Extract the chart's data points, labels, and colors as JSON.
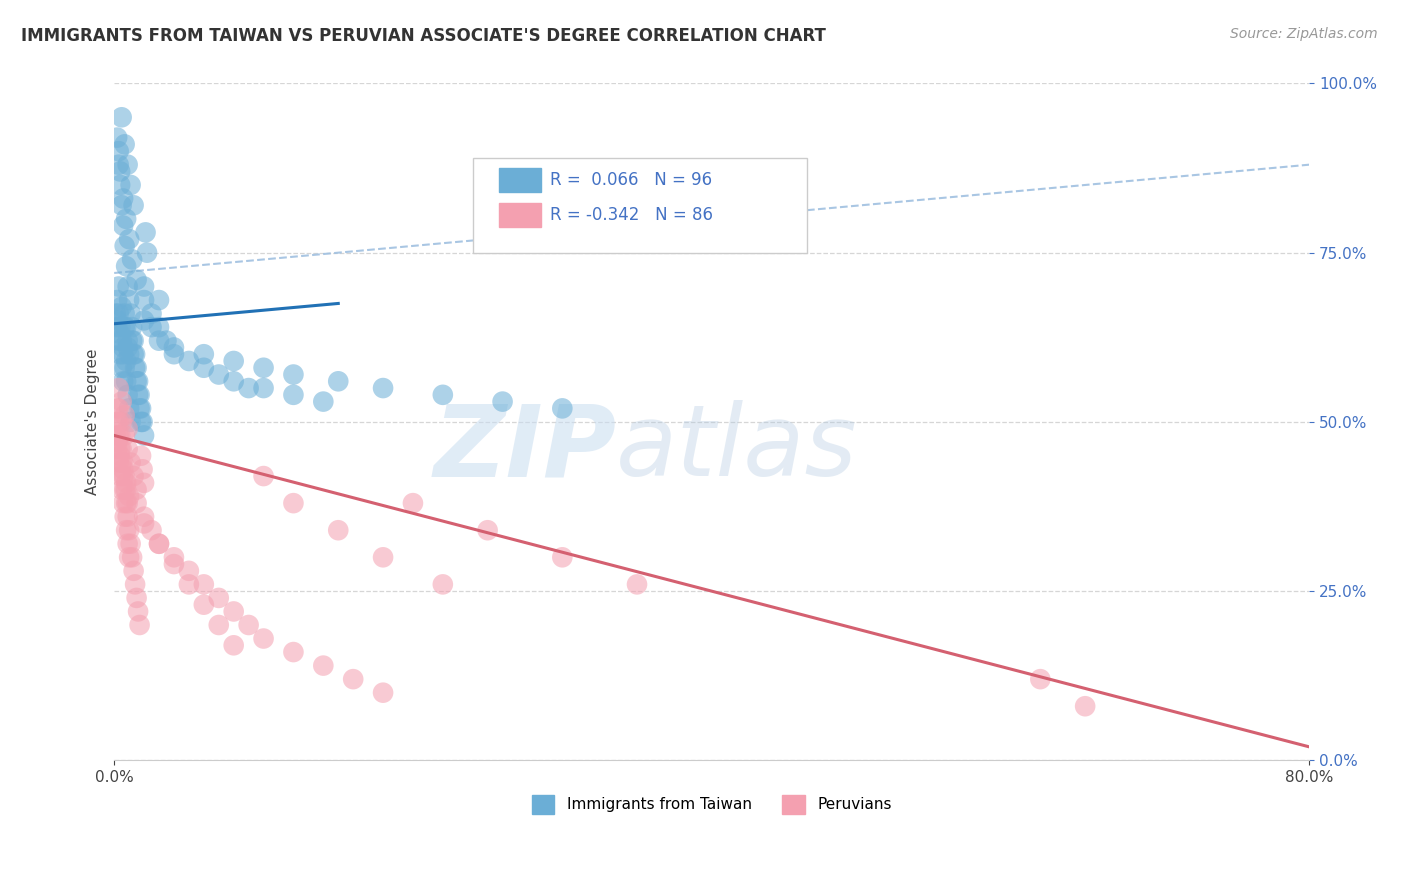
{
  "title": "IMMIGRANTS FROM TAIWAN VS PERUVIAN ASSOCIATE'S DEGREE CORRELATION CHART",
  "source": "Source: ZipAtlas.com",
  "ylabel": "Associate's Degree",
  "legend_label1": "Immigrants from Taiwan",
  "legend_label2": "Peruvians",
  "R1": 0.066,
  "N1": 96,
  "R2": -0.342,
  "N2": 86,
  "xlim": [
    0.0,
    0.8
  ],
  "ylim": [
    0.0,
    1.0
  ],
  "x_ticks": [
    0.0,
    0.8
  ],
  "x_tick_labels": [
    "0.0%",
    "80.0%"
  ],
  "y_ticks": [
    0.0,
    0.25,
    0.5,
    0.75,
    1.0
  ],
  "y_tick_labels": [
    "0.0%",
    "25.0%",
    "50.0%",
    "75.0%",
    "100.0%"
  ],
  "color_taiwan": "#6baed6",
  "color_peru": "#f4a0b0",
  "trend_color_taiwan": "#2171b5",
  "trend_color_peru": "#d46070",
  "dashed_line_color": "#a0c0e0",
  "bg_color": "#ffffff",
  "grid_color": "#cccccc",
  "watermark_zip": "ZIP",
  "watermark_atlas": "atlas",
  "title_fontsize": 12,
  "axis_label_fontsize": 11,
  "tick_fontsize": 11,
  "source_fontsize": 10,
  "taiwan_dots": {
    "x": [
      0.002,
      0.003,
      0.004,
      0.005,
      0.006,
      0.007,
      0.008,
      0.009,
      0.01,
      0.011,
      0.012,
      0.013,
      0.014,
      0.015,
      0.016,
      0.017,
      0.018,
      0.019,
      0.02,
      0.021,
      0.022,
      0.003,
      0.004,
      0.006,
      0.008,
      0.01,
      0.012,
      0.005,
      0.007,
      0.009,
      0.011,
      0.013,
      0.003,
      0.005,
      0.007,
      0.009,
      0.002,
      0.004,
      0.006,
      0.008,
      0.015,
      0.02,
      0.025,
      0.03,
      0.035,
      0.04,
      0.05,
      0.06,
      0.07,
      0.08,
      0.09,
      0.1,
      0.12,
      0.14,
      0.001,
      0.002,
      0.003,
      0.004,
      0.005,
      0.006,
      0.007,
      0.008,
      0.009,
      0.01,
      0.002,
      0.003,
      0.004,
      0.005,
      0.006,
      0.007,
      0.008,
      0.009,
      0.01,
      0.011,
      0.012,
      0.013,
      0.014,
      0.015,
      0.016,
      0.017,
      0.018,
      0.02,
      0.025,
      0.03,
      0.04,
      0.06,
      0.08,
      0.1,
      0.12,
      0.15,
      0.18,
      0.22,
      0.26,
      0.3,
      0.02,
      0.03
    ],
    "y": [
      0.92,
      0.88,
      0.85,
      0.82,
      0.79,
      0.76,
      0.73,
      0.7,
      0.68,
      0.66,
      0.64,
      0.62,
      0.6,
      0.58,
      0.56,
      0.54,
      0.52,
      0.5,
      0.48,
      0.78,
      0.75,
      0.9,
      0.87,
      0.83,
      0.8,
      0.77,
      0.74,
      0.95,
      0.91,
      0.88,
      0.85,
      0.82,
      0.7,
      0.67,
      0.64,
      0.61,
      0.65,
      0.63,
      0.61,
      0.59,
      0.71,
      0.68,
      0.66,
      0.64,
      0.62,
      0.6,
      0.59,
      0.58,
      0.57,
      0.56,
      0.55,
      0.55,
      0.54,
      0.53,
      0.66,
      0.64,
      0.62,
      0.6,
      0.58,
      0.56,
      0.66,
      0.64,
      0.62,
      0.6,
      0.68,
      0.66,
      0.64,
      0.62,
      0.6,
      0.58,
      0.56,
      0.54,
      0.52,
      0.5,
      0.62,
      0.6,
      0.58,
      0.56,
      0.54,
      0.52,
      0.5,
      0.65,
      0.64,
      0.62,
      0.61,
      0.6,
      0.59,
      0.58,
      0.57,
      0.56,
      0.55,
      0.54,
      0.53,
      0.52,
      0.7,
      0.68
    ]
  },
  "peru_dots": {
    "x": [
      0.002,
      0.003,
      0.004,
      0.005,
      0.006,
      0.007,
      0.008,
      0.009,
      0.01,
      0.011,
      0.012,
      0.013,
      0.014,
      0.015,
      0.016,
      0.017,
      0.018,
      0.019,
      0.02,
      0.003,
      0.005,
      0.007,
      0.009,
      0.011,
      0.013,
      0.015,
      0.003,
      0.005,
      0.007,
      0.009,
      0.002,
      0.004,
      0.006,
      0.008,
      0.01,
      0.015,
      0.02,
      0.025,
      0.03,
      0.04,
      0.05,
      0.06,
      0.07,
      0.08,
      0.09,
      0.1,
      0.12,
      0.14,
      0.16,
      0.18,
      0.2,
      0.25,
      0.3,
      0.35,
      0.001,
      0.002,
      0.003,
      0.004,
      0.005,
      0.006,
      0.007,
      0.008,
      0.009,
      0.01,
      0.002,
      0.003,
      0.004,
      0.005,
      0.006,
      0.007,
      0.008,
      0.009,
      0.02,
      0.03,
      0.04,
      0.05,
      0.06,
      0.07,
      0.08,
      0.65,
      0.62,
      0.1,
      0.12,
      0.15,
      0.18,
      0.22
    ],
    "y": [
      0.5,
      0.48,
      0.46,
      0.44,
      0.42,
      0.4,
      0.38,
      0.36,
      0.34,
      0.32,
      0.3,
      0.28,
      0.26,
      0.24,
      0.22,
      0.2,
      0.45,
      0.43,
      0.41,
      0.52,
      0.5,
      0.48,
      0.46,
      0.44,
      0.42,
      0.4,
      0.55,
      0.53,
      0.51,
      0.49,
      0.47,
      0.45,
      0.43,
      0.41,
      0.39,
      0.38,
      0.36,
      0.34,
      0.32,
      0.3,
      0.28,
      0.26,
      0.24,
      0.22,
      0.2,
      0.18,
      0.16,
      0.14,
      0.12,
      0.1,
      0.38,
      0.34,
      0.3,
      0.26,
      0.48,
      0.46,
      0.44,
      0.42,
      0.4,
      0.38,
      0.36,
      0.34,
      0.32,
      0.3,
      0.52,
      0.5,
      0.48,
      0.46,
      0.44,
      0.42,
      0.4,
      0.38,
      0.35,
      0.32,
      0.29,
      0.26,
      0.23,
      0.2,
      0.17,
      0.08,
      0.12,
      0.42,
      0.38,
      0.34,
      0.3,
      0.26
    ]
  },
  "blue_line": {
    "x0": 0.0,
    "x1": 0.15,
    "y0": 0.645,
    "y1": 0.675
  },
  "pink_line": {
    "x0": 0.0,
    "x1": 0.8,
    "y0": 0.48,
    "y1": 0.02
  },
  "dashed_line": {
    "x0": 0.0,
    "x1": 0.8,
    "y0": 0.72,
    "y1": 0.88
  }
}
